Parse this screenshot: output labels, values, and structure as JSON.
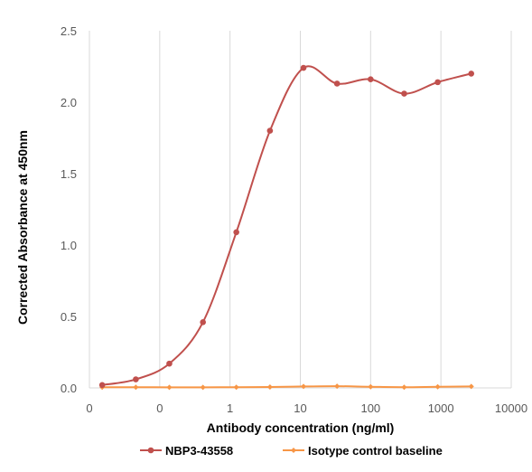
{
  "chart_data": {
    "type": "line",
    "title": "",
    "xlabel": "Antibody concentration (ng/ml)",
    "ylabel": "Corrected Absorbance at 450nm",
    "x_scale": "log",
    "x_tick_labels": [
      "0",
      "0",
      "1",
      "10",
      "100",
      "1000",
      "10000"
    ],
    "y_ticks": [
      0.0,
      0.5,
      1.0,
      1.5,
      2.0,
      2.5
    ],
    "y_tick_labels": [
      "0.0",
      "0.5",
      "1.0",
      "1.5",
      "2.0",
      "2.5"
    ],
    "ylim": [
      0,
      2.5
    ],
    "grid": "vertical",
    "legend_position": "bottom",
    "x": [
      0.0152,
      0.0457,
      0.137,
      0.412,
      1.23,
      3.7,
      11.1,
      33.3,
      100,
      300,
      900,
      2700
    ],
    "series": [
      {
        "name": "NBP3-43558",
        "color": "#c0504d",
        "marker": "circle",
        "values": [
          0.02,
          0.06,
          0.17,
          0.46,
          1.09,
          1.8,
          2.24,
          2.13,
          2.16,
          2.06,
          2.14,
          2.2
        ]
      },
      {
        "name": "Isotype control baseline",
        "color": "#f79646",
        "marker": "diamond",
        "values": [
          0.005,
          0.005,
          0.004,
          0.004,
          0.005,
          0.006,
          0.01,
          0.012,
          0.008,
          0.005,
          0.008,
          0.01
        ]
      }
    ]
  }
}
